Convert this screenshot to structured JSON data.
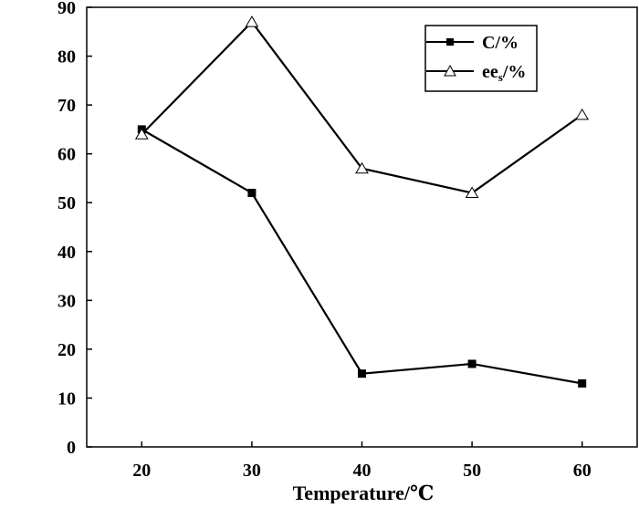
{
  "chart_data": {
    "type": "line",
    "x": [
      20,
      30,
      40,
      50,
      60
    ],
    "xlabel": "Temperature/℃",
    "ylabel": "",
    "title": "",
    "xlim": [
      15,
      65
    ],
    "ylim": [
      0,
      90
    ],
    "xticks": [
      20,
      30,
      40,
      50,
      60
    ],
    "yticks": [
      0,
      10,
      20,
      30,
      40,
      50,
      60,
      70,
      80,
      90
    ],
    "grid": false,
    "legend_position": "top-right",
    "series": [
      {
        "name": "C/%",
        "marker": "filled-square",
        "color": "#000000",
        "values": [
          65,
          52,
          15,
          17,
          13
        ]
      },
      {
        "name": "ee",
        "name_subscript": "s",
        "name_suffix": "/%",
        "marker": "open-triangle",
        "color": "#000000",
        "values": [
          64,
          87,
          57,
          52,
          68
        ]
      }
    ]
  }
}
